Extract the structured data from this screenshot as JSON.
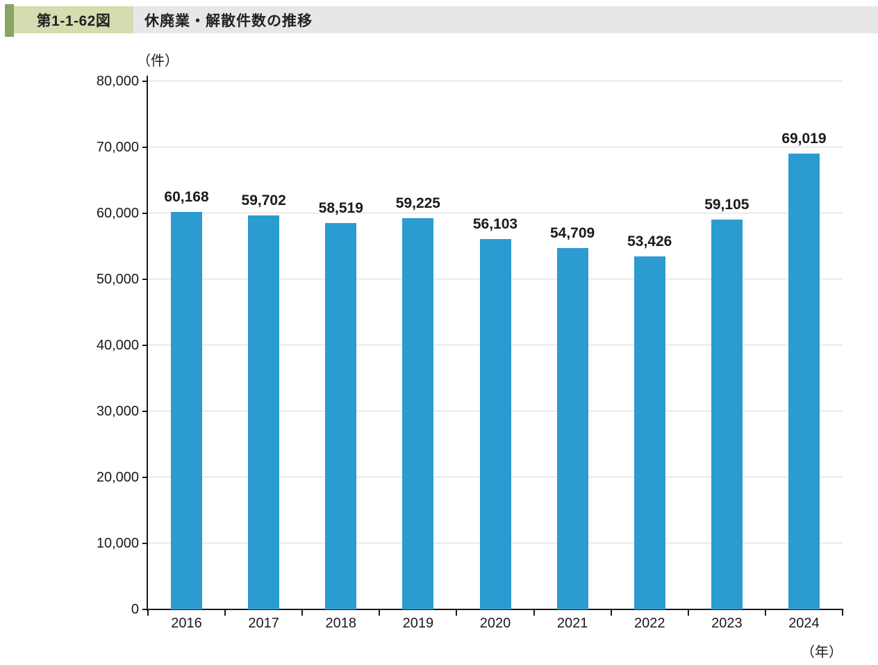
{
  "header": {
    "figure_number": "第1-1-62図",
    "title": "休廃業・解散件数の推移",
    "accent_color": "#8aa362",
    "figure_box_color": "#d4dcb0",
    "band_color": "#e7e7e9"
  },
  "chart_data": {
    "type": "bar",
    "title": "休廃業・解散件数の推移",
    "y_unit_label": "（件）",
    "x_unit_label": "（年）",
    "categories": [
      "2016",
      "2017",
      "2018",
      "2019",
      "2020",
      "2021",
      "2022",
      "2023",
      "2024"
    ],
    "values": [
      60168,
      59702,
      58519,
      59225,
      56103,
      54709,
      53426,
      59105,
      69019
    ],
    "value_labels": [
      "60,168",
      "59,702",
      "58,519",
      "59,225",
      "56,103",
      "54,709",
      "53,426",
      "59,105",
      "69,019"
    ],
    "ylim": [
      0,
      80000
    ],
    "ytick_interval": 10000,
    "ytick_labels": [
      "0",
      "10,000",
      "20,000",
      "30,000",
      "40,000",
      "50,000",
      "60,000",
      "70,000",
      "80,000"
    ],
    "bar_color": "#2b9bd2",
    "gridline_color": "#d9d9d9",
    "grid": true,
    "legend": "none"
  }
}
